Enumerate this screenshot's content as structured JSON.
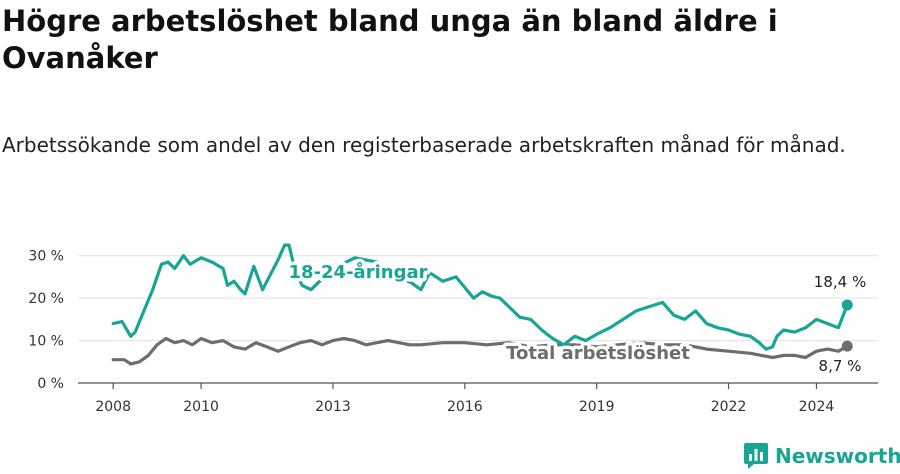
{
  "header": {
    "title": "Högre arbetslöshet bland unga än bland äldre i Ovanåker",
    "subtitle": "Arbetssökande som andel av den registerbaserade arbetskraften månad för månad."
  },
  "brand": {
    "name": "Newsworthy",
    "icon": "bar-chart-logo-icon",
    "color": "#17a594"
  },
  "colors": {
    "young": "#17a594",
    "total": "#6d6d6d",
    "grid": "#e2e2e2",
    "axis": "#555555"
  },
  "chart_data": {
    "type": "line",
    "title": "Högre arbetslöshet bland unga än bland äldre i Ovanåker",
    "subtitle": "Arbetssökande som andel av den registerbaserade arbetskraften månad för månad.",
    "xlabel": "",
    "ylabel": "",
    "ylim": [
      0,
      33
    ],
    "xlim": [
      2007.2,
      2025.4
    ],
    "y_ticks": [
      0,
      10,
      20,
      30
    ],
    "y_tick_labels": [
      "0 %",
      "10 %",
      "20 %",
      "30 %"
    ],
    "x_ticks": [
      2008,
      2010,
      2013,
      2016,
      2019,
      2022,
      2024
    ],
    "x_tick_labels": [
      "2008",
      "2010",
      "2013",
      "2016",
      "2019",
      "2022",
      "2024"
    ],
    "grid": "horizontal",
    "series": [
      {
        "name": "18-24-åringar",
        "color": "#17a594",
        "last_label": "18,4 %",
        "x": [
          2008.0,
          2008.2,
          2008.4,
          2008.5,
          2008.7,
          2008.9,
          2009.1,
          2009.25,
          2009.4,
          2009.6,
          2009.75,
          2010.0,
          2010.25,
          2010.5,
          2010.6,
          2010.75,
          2010.9,
          2011.0,
          2011.2,
          2011.4,
          2011.6,
          2011.75,
          2011.9,
          2012.0,
          2012.15,
          2012.3,
          2012.5,
          2013.0,
          2013.5,
          2014.0,
          2014.2,
          2014.5,
          2014.8,
          2015.0,
          2015.2,
          2015.5,
          2015.8,
          2016.0,
          2016.2,
          2016.4,
          2016.6,
          2016.8,
          2017.0,
          2017.25,
          2017.5,
          2017.75,
          2018.0,
          2018.25,
          2018.5,
          2018.75,
          2019.0,
          2019.3,
          2019.6,
          2019.9,
          2020.2,
          2020.5,
          2020.75,
          2021.0,
          2021.25,
          2021.5,
          2021.75,
          2022.0,
          2022.25,
          2022.5,
          2022.7,
          2022.85,
          2023.0,
          2023.1,
          2023.25,
          2023.5,
          2023.75,
          2024.0,
          2024.25,
          2024.5,
          2024.7
        ],
        "values": [
          14.0,
          14.5,
          11.0,
          12.0,
          17.0,
          22.0,
          28.0,
          28.5,
          27.0,
          30.0,
          28.0,
          29.5,
          28.5,
          27.0,
          23.0,
          24.0,
          22.0,
          21.0,
          27.5,
          22.0,
          26.0,
          29.0,
          32.5,
          32.5,
          26.0,
          23.0,
          22.0,
          27.0,
          29.5,
          28.5,
          26.0,
          25.0,
          23.5,
          22.0,
          26.0,
          24.0,
          25.0,
          22.5,
          20.0,
          21.5,
          20.5,
          20.0,
          18.0,
          15.5,
          15.0,
          12.5,
          10.5,
          9.0,
          11.0,
          10.0,
          11.5,
          13.0,
          15.0,
          17.0,
          18.0,
          19.0,
          16.0,
          15.0,
          17.0,
          14.0,
          13.0,
          12.5,
          11.5,
          11.0,
          9.5,
          8.0,
          8.5,
          11.0,
          12.5,
          12.0,
          13.0,
          15.0,
          14.0,
          13.0,
          18.4
        ]
      },
      {
        "name": "Total arbetslöshet",
        "color": "#6d6d6d",
        "last_label": "8,7 %",
        "x": [
          2008.0,
          2008.25,
          2008.4,
          2008.6,
          2008.8,
          2009.0,
          2009.2,
          2009.4,
          2009.6,
          2009.8,
          2010.0,
          2010.25,
          2010.5,
          2010.75,
          2011.0,
          2011.25,
          2011.5,
          2011.75,
          2012.0,
          2012.25,
          2012.5,
          2012.75,
          2013.0,
          2013.25,
          2013.5,
          2013.75,
          2014.0,
          2014.25,
          2014.5,
          2014.75,
          2015.0,
          2015.5,
          2016.0,
          2016.5,
          2017.0,
          2017.5,
          2018.0,
          2018.5,
          2019.0,
          2019.5,
          2020.0,
          2020.5,
          2021.0,
          2021.5,
          2022.0,
          2022.5,
          2022.75,
          2023.0,
          2023.25,
          2023.5,
          2023.75,
          2024.0,
          2024.25,
          2024.5,
          2024.7
        ],
        "values": [
          5.5,
          5.5,
          4.5,
          5.0,
          6.5,
          9.0,
          10.5,
          9.5,
          10.0,
          9.0,
          10.5,
          9.5,
          10.0,
          8.5,
          8.0,
          9.5,
          8.5,
          7.5,
          8.5,
          9.5,
          10.0,
          9.0,
          10.0,
          10.5,
          10.0,
          9.0,
          9.5,
          10.0,
          9.5,
          9.0,
          9.0,
          9.5,
          9.5,
          9.0,
          9.5,
          8.5,
          9.0,
          9.0,
          8.5,
          9.0,
          9.5,
          9.0,
          9.0,
          8.0,
          7.5,
          7.0,
          6.5,
          6.0,
          6.5,
          6.5,
          6.0,
          7.5,
          8.0,
          7.5,
          8.7
        ]
      }
    ]
  }
}
